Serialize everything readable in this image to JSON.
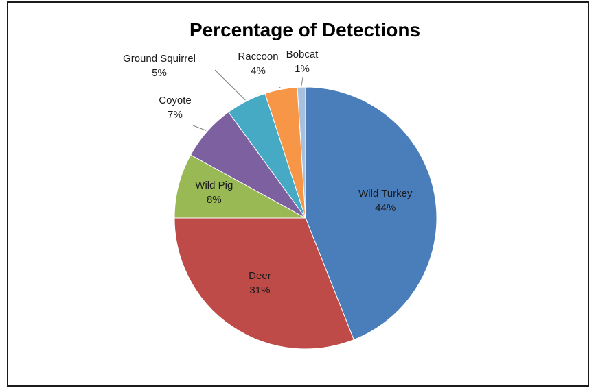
{
  "chart_data": {
    "type": "pie",
    "title": "Percentage of Detections",
    "categories": [
      "Wild Turkey",
      "Deer",
      "Wild Pig",
      "Coyote",
      "Ground Squirrel",
      "Raccoon",
      "Bobcat"
    ],
    "values": [
      44,
      31,
      8,
      7,
      5,
      4,
      1
    ],
    "value_labels": [
      "44%",
      "31%",
      "8%",
      "7%",
      "5%",
      "4%",
      "1%"
    ],
    "colors": [
      "#4a7ebb",
      "#be4b48",
      "#98b954",
      "#7d60a0",
      "#46aac5",
      "#f79646",
      "#a7c0de"
    ],
    "label_placement": [
      "inside",
      "inside",
      "inside",
      "outside",
      "outside",
      "outside",
      "outside"
    ],
    "legend": "none"
  }
}
